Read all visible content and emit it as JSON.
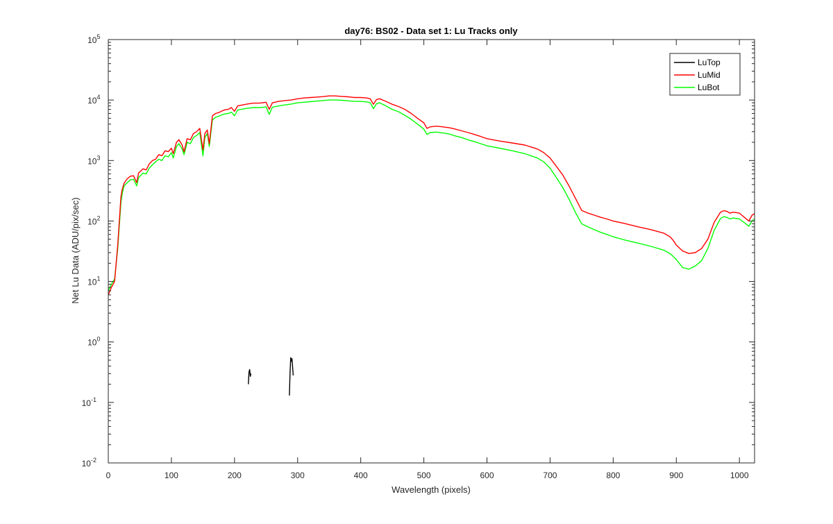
{
  "chart_data": {
    "type": "line",
    "title": "day76: BS02 - Data set 1: Lu Tracks only",
    "xlabel": "Wavelength (pixels)",
    "ylabel": "Net Lu Data (ADU/pix/sec)",
    "xlim": [
      0,
      1024
    ],
    "ylim": [
      0.01,
      100000
    ],
    "yscale": "log",
    "grid": false,
    "legend_position": "top-right",
    "x_ticks": [
      "0",
      "100",
      "200",
      "300",
      "400",
      "500",
      "600",
      "700",
      "800",
      "900",
      "1000"
    ],
    "y_ticks": [
      {
        "base": "10",
        "exp": "-2",
        "value": 0.01
      },
      {
        "base": "10",
        "exp": "-1",
        "value": 0.1
      },
      {
        "base": "10",
        "exp": "0",
        "value": 1
      },
      {
        "base": "10",
        "exp": "1",
        "value": 10
      },
      {
        "base": "10",
        "exp": "2",
        "value": 100
      },
      {
        "base": "10",
        "exp": "3",
        "value": 1000
      },
      {
        "base": "10",
        "exp": "4",
        "value": 10000
      },
      {
        "base": "10",
        "exp": "5",
        "value": 100000
      }
    ],
    "series": [
      {
        "name": "LuTop",
        "color": "#000000",
        "segments": [
          [
            [
              222,
              0.2
            ],
            [
              223,
              0.32
            ],
            [
              224,
              0.35
            ],
            [
              225,
              0.27
            ],
            [
              226,
              0.3
            ]
          ],
          [
            [
              287,
              0.13
            ],
            [
              288,
              0.3
            ],
            [
              289,
              0.55
            ],
            [
              290,
              0.48
            ],
            [
              291,
              0.53
            ],
            [
              293,
              0.28
            ]
          ]
        ]
      },
      {
        "name": "LuMid",
        "color": "#ff0000",
        "points": [
          [
            0,
            6
          ],
          [
            5,
            8
          ],
          [
            10,
            10
          ],
          [
            15,
            40
          ],
          [
            20,
            250
          ],
          [
            22,
            330
          ],
          [
            25,
            420
          ],
          [
            30,
            500
          ],
          [
            35,
            550
          ],
          [
            40,
            560
          ],
          [
            45,
            430
          ],
          [
            48,
            620
          ],
          [
            55,
            730
          ],
          [
            60,
            700
          ],
          [
            65,
            880
          ],
          [
            70,
            1000
          ],
          [
            75,
            1050
          ],
          [
            80,
            1250
          ],
          [
            85,
            1200
          ],
          [
            90,
            1450
          ],
          [
            95,
            1400
          ],
          [
            100,
            1600
          ],
          [
            103,
            1300
          ],
          [
            108,
            2000
          ],
          [
            112,
            2200
          ],
          [
            117,
            1800
          ],
          [
            120,
            1400
          ],
          [
            125,
            2300
          ],
          [
            130,
            2200
          ],
          [
            135,
            2800
          ],
          [
            140,
            3000
          ],
          [
            145,
            3400
          ],
          [
            150,
            1500
          ],
          [
            153,
            2800
          ],
          [
            157,
            3200
          ],
          [
            160,
            1900
          ],
          [
            165,
            5500
          ],
          [
            170,
            6000
          ],
          [
            175,
            6200
          ],
          [
            180,
            6600
          ],
          [
            185,
            6900
          ],
          [
            190,
            7000
          ],
          [
            195,
            7500
          ],
          [
            200,
            6500
          ],
          [
            205,
            8000
          ],
          [
            210,
            8200
          ],
          [
            220,
            8600
          ],
          [
            230,
            8900
          ],
          [
            240,
            8900
          ],
          [
            250,
            9200
          ],
          [
            255,
            7000
          ],
          [
            260,
            9000
          ],
          [
            270,
            9500
          ],
          [
            280,
            9800
          ],
          [
            290,
            10000
          ],
          [
            300,
            10500
          ],
          [
            310,
            10800
          ],
          [
            320,
            11000
          ],
          [
            330,
            11200
          ],
          [
            340,
            11400
          ],
          [
            350,
            11700
          ],
          [
            360,
            11700
          ],
          [
            370,
            11500
          ],
          [
            380,
            11300
          ],
          [
            390,
            11000
          ],
          [
            400,
            11000
          ],
          [
            410,
            10800
          ],
          [
            415,
            10500
          ],
          [
            420,
            8500
          ],
          [
            425,
            10200
          ],
          [
            430,
            10500
          ],
          [
            440,
            9500
          ],
          [
            450,
            8500
          ],
          [
            460,
            7800
          ],
          [
            470,
            7000
          ],
          [
            480,
            6000
          ],
          [
            490,
            5000
          ],
          [
            500,
            4200
          ],
          [
            505,
            3400
          ],
          [
            510,
            3600
          ],
          [
            520,
            3700
          ],
          [
            530,
            3600
          ],
          [
            540,
            3500
          ],
          [
            550,
            3300
          ],
          [
            560,
            3100
          ],
          [
            570,
            2900
          ],
          [
            580,
            2700
          ],
          [
            590,
            2500
          ],
          [
            600,
            2300
          ],
          [
            620,
            2100
          ],
          [
            640,
            1950
          ],
          [
            660,
            1800
          ],
          [
            680,
            1550
          ],
          [
            690,
            1350
          ],
          [
            700,
            1100
          ],
          [
            710,
            800
          ],
          [
            720,
            580
          ],
          [
            730,
            380
          ],
          [
            740,
            240
          ],
          [
            750,
            150
          ],
          [
            760,
            135
          ],
          [
            770,
            125
          ],
          [
            780,
            115
          ],
          [
            790,
            108
          ],
          [
            800,
            100
          ],
          [
            820,
            90
          ],
          [
            840,
            80
          ],
          [
            860,
            72
          ],
          [
            880,
            63
          ],
          [
            890,
            55
          ],
          [
            895,
            48
          ],
          [
            900,
            40
          ],
          [
            910,
            32
          ],
          [
            920,
            29
          ],
          [
            930,
            30
          ],
          [
            940,
            35
          ],
          [
            950,
            50
          ],
          [
            960,
            95
          ],
          [
            970,
            140
          ],
          [
            975,
            148
          ],
          [
            980,
            145
          ],
          [
            985,
            135
          ],
          [
            990,
            140
          ],
          [
            1000,
            135
          ],
          [
            1010,
            110
          ],
          [
            1015,
            100
          ],
          [
            1020,
            125
          ],
          [
            1024,
            132
          ]
        ]
      },
      {
        "name": "LuBot",
        "color": "#00ff00",
        "points": [
          [
            0,
            7
          ],
          [
            5,
            9
          ],
          [
            10,
            11
          ],
          [
            15,
            35
          ],
          [
            20,
            200
          ],
          [
            22,
            280
          ],
          [
            25,
            380
          ],
          [
            30,
            430
          ],
          [
            35,
            480
          ],
          [
            40,
            490
          ],
          [
            45,
            380
          ],
          [
            48,
            520
          ],
          [
            55,
            620
          ],
          [
            60,
            600
          ],
          [
            65,
            750
          ],
          [
            70,
            850
          ],
          [
            75,
            950
          ],
          [
            80,
            1050
          ],
          [
            85,
            1000
          ],
          [
            90,
            1200
          ],
          [
            95,
            1150
          ],
          [
            100,
            1350
          ],
          [
            103,
            1100
          ],
          [
            108,
            1700
          ],
          [
            112,
            1900
          ],
          [
            117,
            1550
          ],
          [
            120,
            1250
          ],
          [
            125,
            2000
          ],
          [
            130,
            1900
          ],
          [
            135,
            2400
          ],
          [
            140,
            2600
          ],
          [
            145,
            2900
          ],
          [
            150,
            1200
          ],
          [
            153,
            2400
          ],
          [
            157,
            2800
          ],
          [
            160,
            1700
          ],
          [
            165,
            4700
          ],
          [
            170,
            5200
          ],
          [
            175,
            5400
          ],
          [
            180,
            5700
          ],
          [
            185,
            5900
          ],
          [
            190,
            6000
          ],
          [
            195,
            6300
          ],
          [
            200,
            5500
          ],
          [
            205,
            6800
          ],
          [
            210,
            7000
          ],
          [
            220,
            7300
          ],
          [
            230,
            7500
          ],
          [
            240,
            7500
          ],
          [
            250,
            7700
          ],
          [
            255,
            5800
          ],
          [
            260,
            7600
          ],
          [
            270,
            8000
          ],
          [
            280,
            8300
          ],
          [
            290,
            8600
          ],
          [
            300,
            9000
          ],
          [
            310,
            9200
          ],
          [
            320,
            9400
          ],
          [
            330,
            9600
          ],
          [
            340,
            9800
          ],
          [
            350,
            10000
          ],
          [
            360,
            10000
          ],
          [
            370,
            9900
          ],
          [
            380,
            9700
          ],
          [
            390,
            9500
          ],
          [
            400,
            9500
          ],
          [
            410,
            9300
          ],
          [
            415,
            9000
          ],
          [
            420,
            7200
          ],
          [
            425,
            8700
          ],
          [
            430,
            9000
          ],
          [
            440,
            8000
          ],
          [
            450,
            7000
          ],
          [
            460,
            6400
          ],
          [
            470,
            5600
          ],
          [
            480,
            4800
          ],
          [
            490,
            4000
          ],
          [
            500,
            3300
          ],
          [
            505,
            2700
          ],
          [
            510,
            2900
          ],
          [
            520,
            2950
          ],
          [
            530,
            2850
          ],
          [
            540,
            2750
          ],
          [
            550,
            2550
          ],
          [
            560,
            2400
          ],
          [
            570,
            2200
          ],
          [
            580,
            2050
          ],
          [
            590,
            1900
          ],
          [
            600,
            1750
          ],
          [
            620,
            1600
          ],
          [
            640,
            1450
          ],
          [
            660,
            1300
          ],
          [
            680,
            1100
          ],
          [
            690,
            950
          ],
          [
            700,
            750
          ],
          [
            710,
            520
          ],
          [
            720,
            360
          ],
          [
            730,
            230
          ],
          [
            740,
            140
          ],
          [
            750,
            90
          ],
          [
            760,
            80
          ],
          [
            770,
            72
          ],
          [
            780,
            65
          ],
          [
            790,
            60
          ],
          [
            800,
            55
          ],
          [
            820,
            48
          ],
          [
            840,
            43
          ],
          [
            860,
            38
          ],
          [
            880,
            33
          ],
          [
            890,
            29
          ],
          [
            895,
            26
          ],
          [
            900,
            23
          ],
          [
            910,
            17
          ],
          [
            920,
            16
          ],
          [
            930,
            18
          ],
          [
            940,
            22
          ],
          [
            950,
            35
          ],
          [
            960,
            70
          ],
          [
            970,
            110
          ],
          [
            975,
            118
          ],
          [
            980,
            115
          ],
          [
            985,
            108
          ],
          [
            990,
            112
          ],
          [
            1000,
            108
          ],
          [
            1010,
            90
          ],
          [
            1015,
            82
          ],
          [
            1020,
            100
          ],
          [
            1024,
            108
          ]
        ]
      }
    ]
  }
}
